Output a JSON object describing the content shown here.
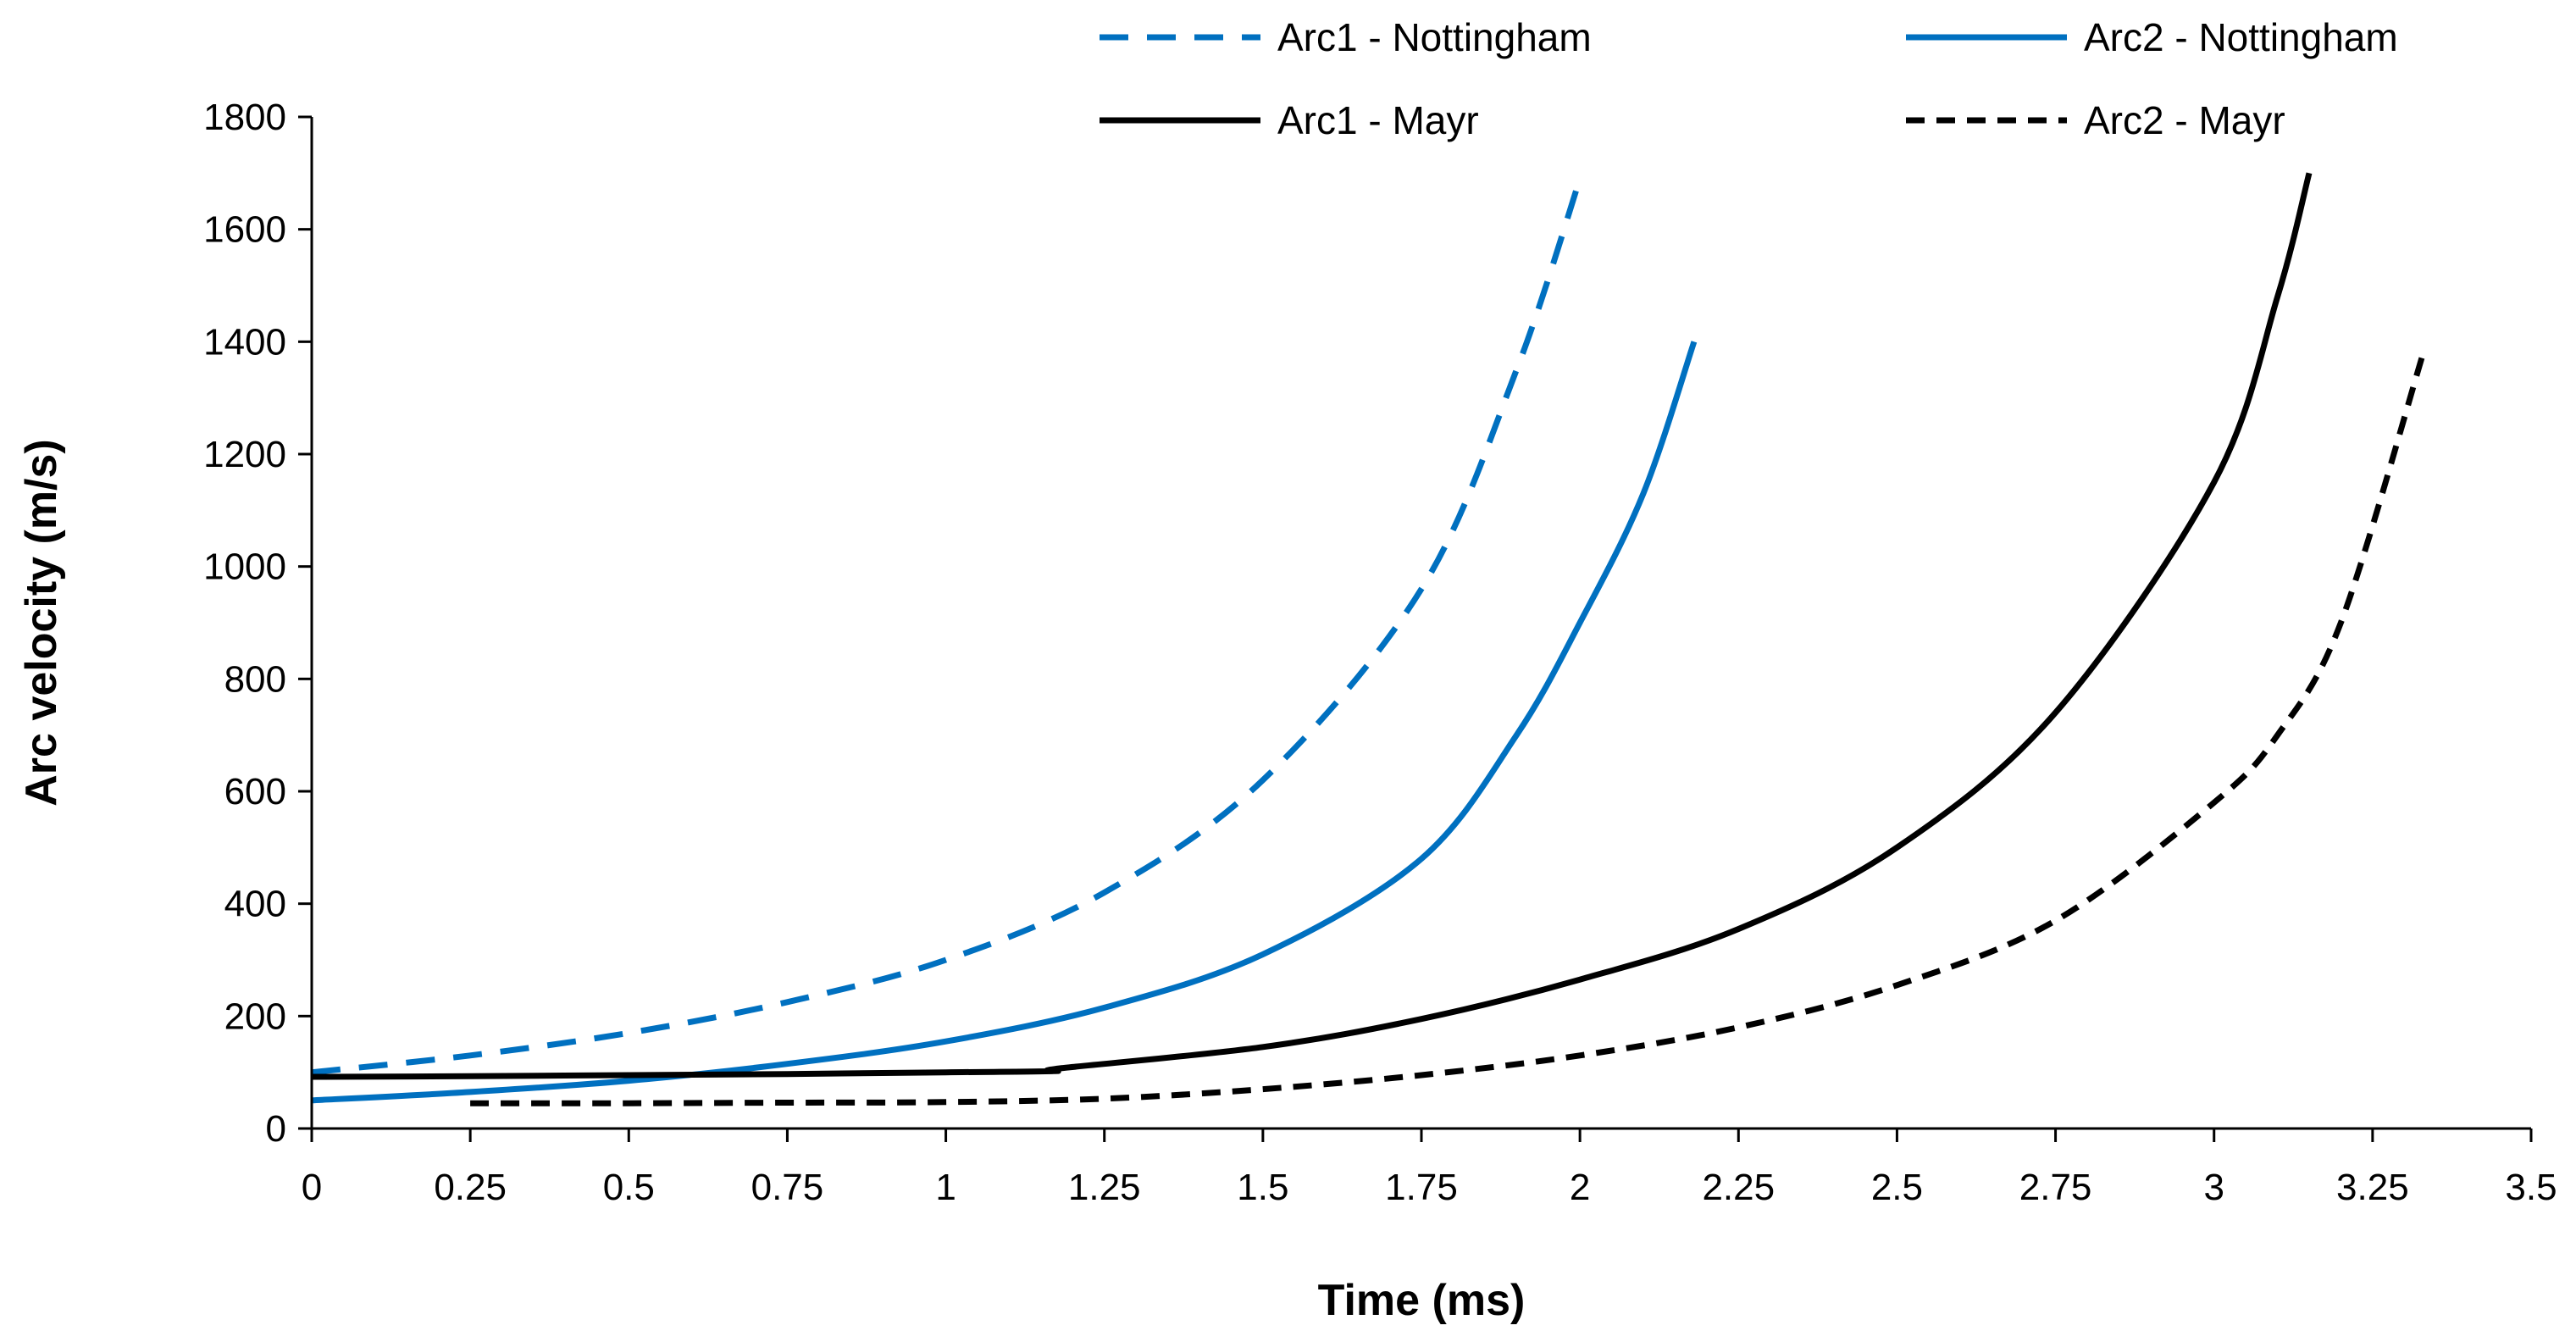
{
  "chart_data": {
    "type": "line",
    "title": "",
    "xlabel": "Time (ms)",
    "ylabel": "Arc velocity (m/s)",
    "xlim": [
      0,
      3.5
    ],
    "ylim": [
      0,
      1800
    ],
    "xticks": [
      "0",
      "0.25",
      "0.5",
      "0.75",
      "1",
      "1.25",
      "1.5",
      "1.75",
      "2",
      "2.25",
      "2.5",
      "2.75",
      "3",
      "3.25",
      "3.5"
    ],
    "yticks": [
      "0",
      "200",
      "400",
      "600",
      "800",
      "1000",
      "1200",
      "1400",
      "1600",
      "1800"
    ],
    "grid": false,
    "legend_position": "top",
    "series": [
      {
        "name": "Arc1 - Nottingham",
        "color": "#0070C0",
        "style": "dashed",
        "x": [
          0,
          0.25,
          0.5,
          0.75,
          1.0,
          1.25,
          1.5,
          1.75,
          1.9,
          2.0
        ],
        "y": [
          100,
          130,
          170,
          225,
          300,
          420,
          620,
          960,
          1350,
          1690
        ]
      },
      {
        "name": "Arc2 - Nottingham",
        "color": "#0070C0",
        "style": "solid",
        "x": [
          0,
          0.25,
          0.5,
          0.75,
          1.0,
          1.25,
          1.5,
          1.75,
          1.9,
          2.0,
          2.1,
          2.18
        ],
        "y": [
          50,
          65,
          85,
          115,
          155,
          215,
          310,
          480,
          700,
          900,
          1130,
          1400
        ]
      },
      {
        "name": "Arc1 - Mayr",
        "color": "#000000",
        "style": "solid",
        "x": [
          0,
          0.25,
          0.5,
          0.75,
          1.0,
          1.17,
          1.18,
          1.5,
          1.75,
          2.0,
          2.25,
          2.5,
          2.75,
          3.0,
          3.1,
          3.15
        ],
        "y": [
          92,
          93,
          95,
          97,
          100,
          102,
          107,
          145,
          195,
          265,
          355,
          500,
          740,
          1150,
          1480,
          1700
        ]
      },
      {
        "name": "Arc2 - Mayr",
        "color": "#000000",
        "style": "dashed",
        "x": [
          0.25,
          0.5,
          0.75,
          1.0,
          1.25,
          1.5,
          1.75,
          2.0,
          2.25,
          2.5,
          2.75,
          3.0,
          3.1,
          3.2,
          3.33
        ],
        "y": [
          45,
          45,
          46,
          47,
          53,
          70,
          95,
          130,
          180,
          255,
          370,
          580,
          700,
          900,
          1380
        ]
      }
    ]
  }
}
